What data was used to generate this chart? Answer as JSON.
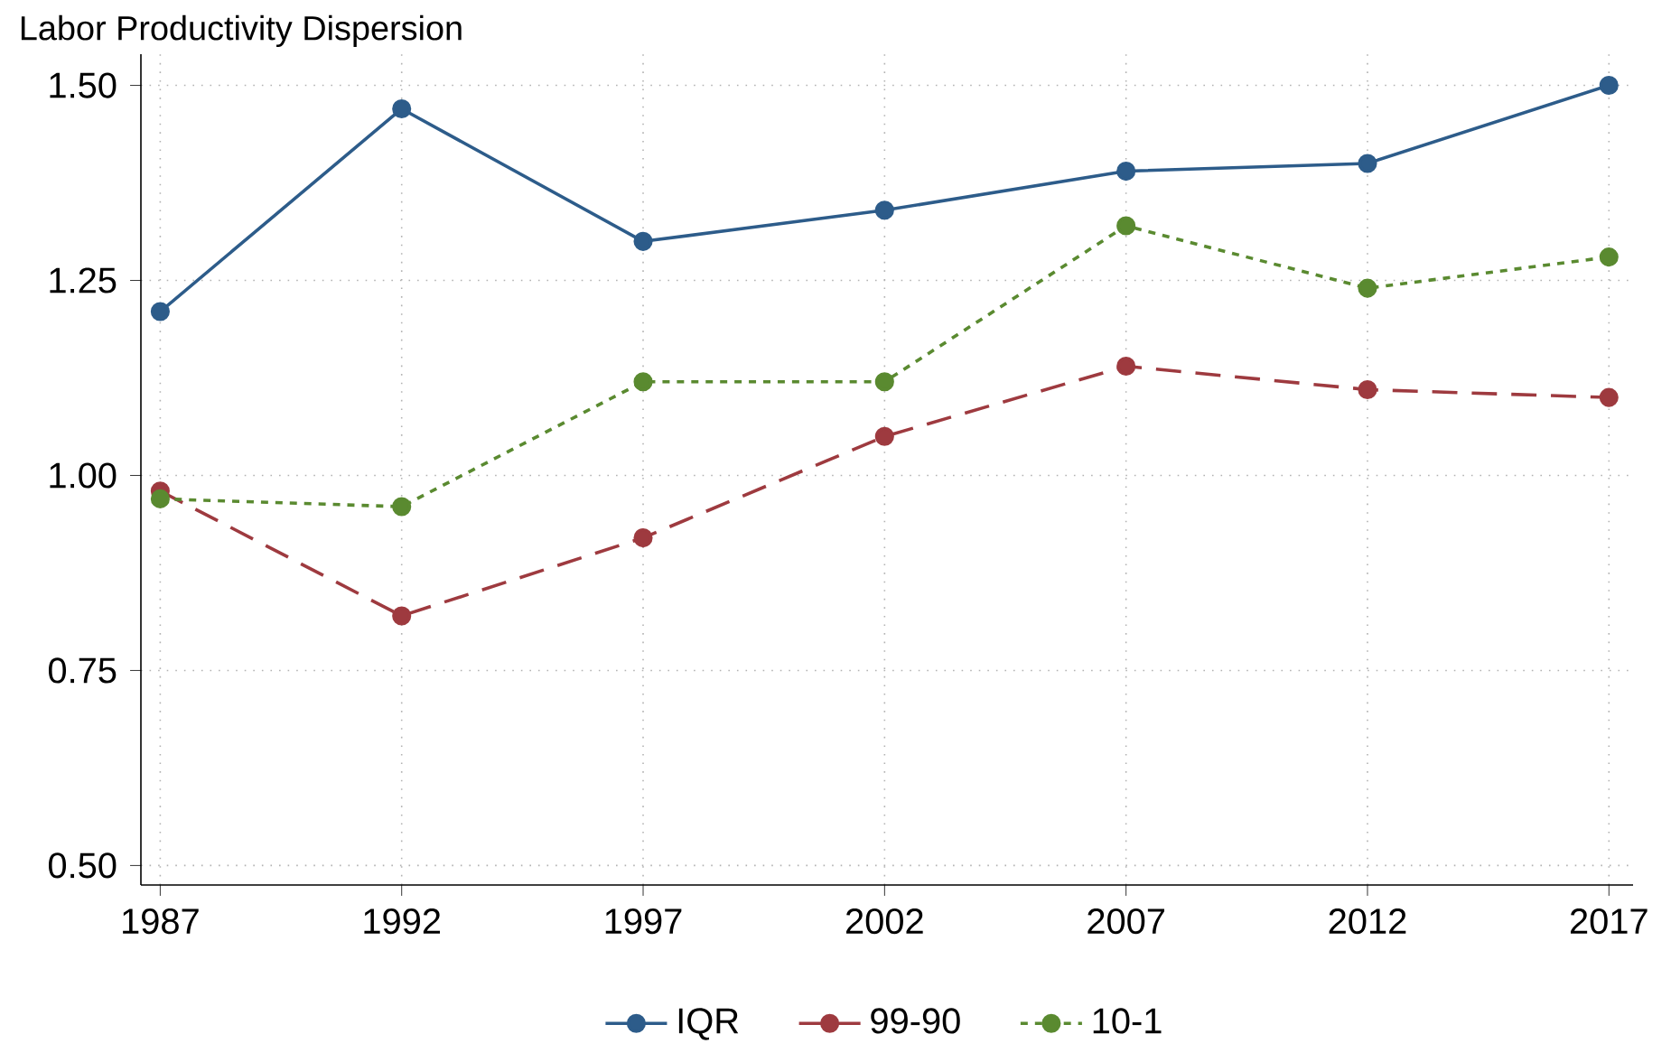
{
  "chart_data": {
    "type": "line",
    "title": "Labor Productivity Dispersion",
    "x": [
      1987,
      1992,
      1997,
      2002,
      2007,
      2012,
      2017
    ],
    "series": [
      {
        "name": "IQR",
        "color": "#2d5c8a",
        "line_style": "solid",
        "values": [
          1.21,
          1.47,
          1.3,
          1.34,
          1.39,
          1.4,
          1.5
        ]
      },
      {
        "name": "99-90",
        "color": "#9e3a3f",
        "line_style": "dashed",
        "values": [
          0.98,
          0.82,
          0.92,
          1.05,
          1.14,
          1.11,
          1.1
        ]
      },
      {
        "name": "10-1",
        "color": "#5a8a30",
        "line_style": "dotted",
        "values": [
          0.97,
          0.96,
          1.12,
          1.12,
          1.32,
          1.24,
          1.28
        ]
      }
    ],
    "xlim": [
      1986.6,
      2017.5
    ],
    "ylim": [
      0.475,
      1.54
    ],
    "xticks": [
      1987,
      1992,
      1997,
      2002,
      2007,
      2012,
      2017
    ],
    "yticks": [
      {
        "value": 0.5,
        "label": "0.50"
      },
      {
        "value": 0.75,
        "label": "0.75"
      },
      {
        "value": 1.0,
        "label": "1.00"
      },
      {
        "value": 1.25,
        "label": "1.25"
      },
      {
        "value": 1.5,
        "label": "1.50"
      }
    ],
    "grid": true,
    "legend": "bottom",
    "marker": "circle"
  }
}
